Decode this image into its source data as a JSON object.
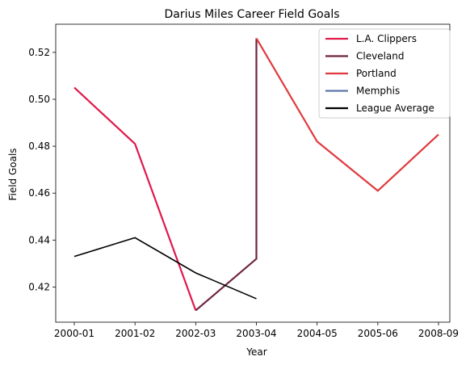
{
  "chart_data": {
    "type": "line",
    "title": "Darius Miles Career Field Goals",
    "xlabel": "Year",
    "ylabel": "Field Goals",
    "categories": [
      "2000-01",
      "2001-02",
      "2002-03",
      "2003-04",
      "2004-05",
      "2005-06",
      "2008-09"
    ],
    "ylim": [
      0.405,
      0.532
    ],
    "yticks": [
      0.42,
      0.44,
      0.46,
      0.48,
      0.5,
      0.52
    ],
    "ytick_labels": [
      "0.42",
      "0.44",
      "0.46",
      "0.48",
      "0.50",
      "0.52"
    ],
    "grid": false,
    "legend_position": "top-right",
    "series": [
      {
        "name": "L.A. Clippers",
        "color": "#e0194b",
        "points": [
          {
            "x": "2000-01",
            "y": 0.505
          },
          {
            "x": "2001-02",
            "y": 0.481
          },
          {
            "x": "2002-03",
            "y": 0.41
          }
        ]
      },
      {
        "name": "Cleveland",
        "color": "#6e2540",
        "points": [
          {
            "x": "2002-03",
            "y": 0.41
          },
          {
            "x": "2003-04",
            "y": 0.432
          },
          {
            "x": "2003-04",
            "y": 0.526
          }
        ]
      },
      {
        "name": "Portland",
        "color": "#e03a3e",
        "points": [
          {
            "x": "2003-04",
            "y": 0.526
          },
          {
            "x": "2004-05",
            "y": 0.482
          },
          {
            "x": "2005-06",
            "y": 0.461
          },
          {
            "x": "2008-09",
            "y": 0.485
          }
        ]
      },
      {
        "name": "Memphis",
        "color": "#5d76a9",
        "points": []
      },
      {
        "name": "League Average",
        "color": "#000000",
        "points": [
          {
            "x": "2000-01",
            "y": 0.433
          },
          {
            "x": "2001-02",
            "y": 0.441
          },
          {
            "x": "2002-03",
            "y": 0.426
          },
          {
            "x": "2003-04",
            "y": 0.415
          }
        ]
      }
    ]
  }
}
